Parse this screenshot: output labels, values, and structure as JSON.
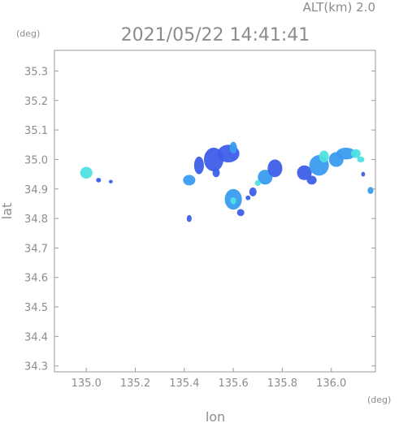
{
  "header": {
    "altitude_label": "ALT(km)  2.0",
    "timestamp": "2021/05/22 14:41:41"
  },
  "chart_data": {
    "type": "heatmap",
    "title": "2021/05/22 14:41:41",
    "xlabel": "lon",
    "ylabel": "lat",
    "x_unit": "(deg)",
    "y_unit": "(deg)",
    "xlim": [
      134.87,
      136.18
    ],
    "ylim": [
      34.28,
      35.37
    ],
    "x_ticks": [
      135.0,
      135.2,
      135.4,
      135.6,
      135.8,
      136.0
    ],
    "x_tick_labels": [
      "135.0",
      "135.2",
      "135.4",
      "135.6",
      "135.8",
      "136.0"
    ],
    "y_ticks": [
      34.3,
      34.4,
      34.5,
      34.6,
      34.7,
      34.8,
      34.9,
      35.0,
      35.1,
      35.2,
      35.3
    ],
    "y_tick_labels": [
      "34.3",
      "34.4",
      "34.5",
      "34.6",
      "34.7",
      "34.8",
      "34.9",
      "35.0",
      "35.1",
      "35.2",
      "35.3"
    ],
    "grid": false,
    "colors": {
      "weak": "#3d5ee8",
      "moderate": "#3a9cf0",
      "strong": "#4fe0e0",
      "axis": "#9a9a9a",
      "text": "#8c8c8c"
    },
    "echoes": [
      {
        "lon": 135.0,
        "lat": 34.955,
        "rx": 0.025,
        "ry": 0.02,
        "level": "strong"
      },
      {
        "lon": 135.05,
        "lat": 34.93,
        "rx": 0.01,
        "ry": 0.008,
        "level": "weak"
      },
      {
        "lon": 135.1,
        "lat": 34.925,
        "rx": 0.008,
        "ry": 0.006,
        "level": "weak"
      },
      {
        "lon": 135.42,
        "lat": 34.93,
        "rx": 0.025,
        "ry": 0.018,
        "level": "moderate"
      },
      {
        "lon": 135.42,
        "lat": 34.8,
        "rx": 0.01,
        "ry": 0.012,
        "level": "weak"
      },
      {
        "lon": 135.46,
        "lat": 34.98,
        "rx": 0.02,
        "ry": 0.03,
        "level": "weak"
      },
      {
        "lon": 135.52,
        "lat": 35.0,
        "rx": 0.04,
        "ry": 0.04,
        "level": "weak"
      },
      {
        "lon": 135.53,
        "lat": 34.955,
        "rx": 0.015,
        "ry": 0.015,
        "level": "weak"
      },
      {
        "lon": 135.58,
        "lat": 35.02,
        "rx": 0.045,
        "ry": 0.03,
        "level": "weak"
      },
      {
        "lon": 135.6,
        "lat": 35.04,
        "rx": 0.015,
        "ry": 0.02,
        "level": "moderate"
      },
      {
        "lon": 135.6,
        "lat": 34.865,
        "rx": 0.035,
        "ry": 0.035,
        "level": "moderate"
      },
      {
        "lon": 135.6,
        "lat": 34.86,
        "rx": 0.012,
        "ry": 0.012,
        "level": "strong"
      },
      {
        "lon": 135.63,
        "lat": 34.82,
        "rx": 0.015,
        "ry": 0.012,
        "level": "weak"
      },
      {
        "lon": 135.66,
        "lat": 34.87,
        "rx": 0.01,
        "ry": 0.008,
        "level": "weak"
      },
      {
        "lon": 135.73,
        "lat": 34.94,
        "rx": 0.03,
        "ry": 0.025,
        "level": "moderate"
      },
      {
        "lon": 135.7,
        "lat": 34.92,
        "rx": 0.012,
        "ry": 0.01,
        "level": "strong"
      },
      {
        "lon": 135.77,
        "lat": 34.97,
        "rx": 0.03,
        "ry": 0.03,
        "level": "weak"
      },
      {
        "lon": 135.68,
        "lat": 34.89,
        "rx": 0.015,
        "ry": 0.015,
        "level": "weak"
      },
      {
        "lon": 135.89,
        "lat": 34.955,
        "rx": 0.03,
        "ry": 0.025,
        "level": "weak"
      },
      {
        "lon": 135.95,
        "lat": 34.98,
        "rx": 0.04,
        "ry": 0.035,
        "level": "moderate"
      },
      {
        "lon": 135.97,
        "lat": 35.01,
        "rx": 0.02,
        "ry": 0.02,
        "level": "strong"
      },
      {
        "lon": 136.02,
        "lat": 35.0,
        "rx": 0.03,
        "ry": 0.025,
        "level": "moderate"
      },
      {
        "lon": 136.06,
        "lat": 35.02,
        "rx": 0.04,
        "ry": 0.02,
        "level": "moderate"
      },
      {
        "lon": 136.1,
        "lat": 35.02,
        "rx": 0.02,
        "ry": 0.015,
        "level": "strong"
      },
      {
        "lon": 136.12,
        "lat": 35.0,
        "rx": 0.015,
        "ry": 0.01,
        "level": "strong"
      },
      {
        "lon": 135.92,
        "lat": 34.93,
        "rx": 0.02,
        "ry": 0.015,
        "level": "weak"
      },
      {
        "lon": 136.16,
        "lat": 34.895,
        "rx": 0.012,
        "ry": 0.012,
        "level": "moderate"
      },
      {
        "lon": 136.13,
        "lat": 34.95,
        "rx": 0.008,
        "ry": 0.008,
        "level": "weak"
      }
    ]
  }
}
